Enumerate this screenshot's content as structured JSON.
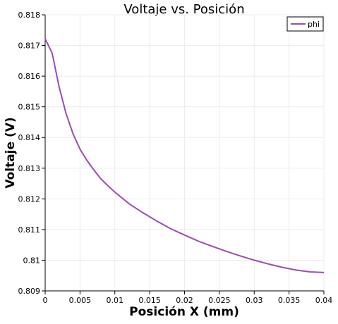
{
  "chart_data": {
    "type": "line",
    "title": "Voltaje vs. Posición",
    "xlabel": "Posición X (mm)",
    "ylabel": "Voltaje (V)",
    "xlim": [
      0,
      0.04
    ],
    "ylim": [
      0.809,
      0.818
    ],
    "x_ticks": [
      "0",
      "0.005",
      "0.01",
      "0.015",
      "0.02",
      "0.025",
      "0.03",
      "0.035",
      "0.04"
    ],
    "y_ticks": [
      "0.809",
      "0.81",
      "0.811",
      "0.812",
      "0.813",
      "0.814",
      "0.815",
      "0.816",
      "0.817",
      "0.818"
    ],
    "grid": true,
    "legend_position": "top-right",
    "series": [
      {
        "name": "phi",
        "color": "#9b4cb0",
        "x": [
          0,
          0.001,
          0.002,
          0.003,
          0.004,
          0.005,
          0.006,
          0.007,
          0.008,
          0.009,
          0.01,
          0.012,
          0.014,
          0.016,
          0.018,
          0.02,
          0.022,
          0.024,
          0.026,
          0.028,
          0.03,
          0.032,
          0.034,
          0.036,
          0.038,
          0.04
        ],
        "y": [
          0.81722,
          0.81675,
          0.81565,
          0.81478,
          0.81412,
          0.81362,
          0.81325,
          0.81294,
          0.81265,
          0.81243,
          0.81222,
          0.81185,
          0.81155,
          0.81128,
          0.81103,
          0.81082,
          0.81062,
          0.81045,
          0.81029,
          0.81014,
          0.81,
          0.80988,
          0.80977,
          0.80968,
          0.80962,
          0.8096
        ]
      }
    ]
  }
}
